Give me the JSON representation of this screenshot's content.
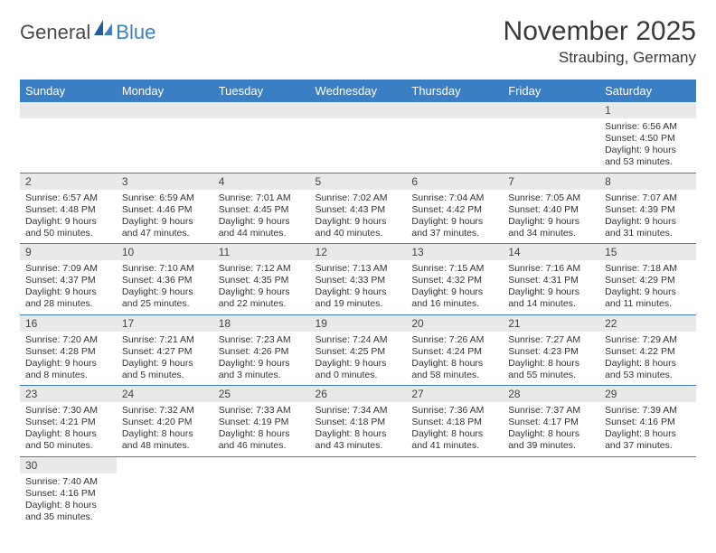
{
  "logo": {
    "text1": "General",
    "text2": "Blue"
  },
  "title": "November 2025",
  "location": "Straubing, Germany",
  "colors": {
    "header_bg": "#3a7fc4",
    "header_text": "#ffffff",
    "daynum_bg": "#e9e9e9",
    "divider": "#3a7fc4",
    "body_text": "#333333",
    "background": "#ffffff"
  },
  "weekdays": [
    "Sunday",
    "Monday",
    "Tuesday",
    "Wednesday",
    "Thursday",
    "Friday",
    "Saturday"
  ],
  "weeks": [
    [
      null,
      null,
      null,
      null,
      null,
      null,
      {
        "n": "1",
        "sr": "Sunrise: 6:56 AM",
        "ss": "Sunset: 4:50 PM",
        "dl": "Daylight: 9 hours and 53 minutes."
      }
    ],
    [
      {
        "n": "2",
        "sr": "Sunrise: 6:57 AM",
        "ss": "Sunset: 4:48 PM",
        "dl": "Daylight: 9 hours and 50 minutes."
      },
      {
        "n": "3",
        "sr": "Sunrise: 6:59 AM",
        "ss": "Sunset: 4:46 PM",
        "dl": "Daylight: 9 hours and 47 minutes."
      },
      {
        "n": "4",
        "sr": "Sunrise: 7:01 AM",
        "ss": "Sunset: 4:45 PM",
        "dl": "Daylight: 9 hours and 44 minutes."
      },
      {
        "n": "5",
        "sr": "Sunrise: 7:02 AM",
        "ss": "Sunset: 4:43 PM",
        "dl": "Daylight: 9 hours and 40 minutes."
      },
      {
        "n": "6",
        "sr": "Sunrise: 7:04 AM",
        "ss": "Sunset: 4:42 PM",
        "dl": "Daylight: 9 hours and 37 minutes."
      },
      {
        "n": "7",
        "sr": "Sunrise: 7:05 AM",
        "ss": "Sunset: 4:40 PM",
        "dl": "Daylight: 9 hours and 34 minutes."
      },
      {
        "n": "8",
        "sr": "Sunrise: 7:07 AM",
        "ss": "Sunset: 4:39 PM",
        "dl": "Daylight: 9 hours and 31 minutes."
      }
    ],
    [
      {
        "n": "9",
        "sr": "Sunrise: 7:09 AM",
        "ss": "Sunset: 4:37 PM",
        "dl": "Daylight: 9 hours and 28 minutes."
      },
      {
        "n": "10",
        "sr": "Sunrise: 7:10 AM",
        "ss": "Sunset: 4:36 PM",
        "dl": "Daylight: 9 hours and 25 minutes."
      },
      {
        "n": "11",
        "sr": "Sunrise: 7:12 AM",
        "ss": "Sunset: 4:35 PM",
        "dl": "Daylight: 9 hours and 22 minutes."
      },
      {
        "n": "12",
        "sr": "Sunrise: 7:13 AM",
        "ss": "Sunset: 4:33 PM",
        "dl": "Daylight: 9 hours and 19 minutes."
      },
      {
        "n": "13",
        "sr": "Sunrise: 7:15 AM",
        "ss": "Sunset: 4:32 PM",
        "dl": "Daylight: 9 hours and 16 minutes."
      },
      {
        "n": "14",
        "sr": "Sunrise: 7:16 AM",
        "ss": "Sunset: 4:31 PM",
        "dl": "Daylight: 9 hours and 14 minutes."
      },
      {
        "n": "15",
        "sr": "Sunrise: 7:18 AM",
        "ss": "Sunset: 4:29 PM",
        "dl": "Daylight: 9 hours and 11 minutes."
      }
    ],
    [
      {
        "n": "16",
        "sr": "Sunrise: 7:20 AM",
        "ss": "Sunset: 4:28 PM",
        "dl": "Daylight: 9 hours and 8 minutes."
      },
      {
        "n": "17",
        "sr": "Sunrise: 7:21 AM",
        "ss": "Sunset: 4:27 PM",
        "dl": "Daylight: 9 hours and 5 minutes."
      },
      {
        "n": "18",
        "sr": "Sunrise: 7:23 AM",
        "ss": "Sunset: 4:26 PM",
        "dl": "Daylight: 9 hours and 3 minutes."
      },
      {
        "n": "19",
        "sr": "Sunrise: 7:24 AM",
        "ss": "Sunset: 4:25 PM",
        "dl": "Daylight: 9 hours and 0 minutes."
      },
      {
        "n": "20",
        "sr": "Sunrise: 7:26 AM",
        "ss": "Sunset: 4:24 PM",
        "dl": "Daylight: 8 hours and 58 minutes."
      },
      {
        "n": "21",
        "sr": "Sunrise: 7:27 AM",
        "ss": "Sunset: 4:23 PM",
        "dl": "Daylight: 8 hours and 55 minutes."
      },
      {
        "n": "22",
        "sr": "Sunrise: 7:29 AM",
        "ss": "Sunset: 4:22 PM",
        "dl": "Daylight: 8 hours and 53 minutes."
      }
    ],
    [
      {
        "n": "23",
        "sr": "Sunrise: 7:30 AM",
        "ss": "Sunset: 4:21 PM",
        "dl": "Daylight: 8 hours and 50 minutes."
      },
      {
        "n": "24",
        "sr": "Sunrise: 7:32 AM",
        "ss": "Sunset: 4:20 PM",
        "dl": "Daylight: 8 hours and 48 minutes."
      },
      {
        "n": "25",
        "sr": "Sunrise: 7:33 AM",
        "ss": "Sunset: 4:19 PM",
        "dl": "Daylight: 8 hours and 46 minutes."
      },
      {
        "n": "26",
        "sr": "Sunrise: 7:34 AM",
        "ss": "Sunset: 4:18 PM",
        "dl": "Daylight: 8 hours and 43 minutes."
      },
      {
        "n": "27",
        "sr": "Sunrise: 7:36 AM",
        "ss": "Sunset: 4:18 PM",
        "dl": "Daylight: 8 hours and 41 minutes."
      },
      {
        "n": "28",
        "sr": "Sunrise: 7:37 AM",
        "ss": "Sunset: 4:17 PM",
        "dl": "Daylight: 8 hours and 39 minutes."
      },
      {
        "n": "29",
        "sr": "Sunrise: 7:39 AM",
        "ss": "Sunset: 4:16 PM",
        "dl": "Daylight: 8 hours and 37 minutes."
      }
    ],
    [
      {
        "n": "30",
        "sr": "Sunrise: 7:40 AM",
        "ss": "Sunset: 4:16 PM",
        "dl": "Daylight: 8 hours and 35 minutes."
      },
      null,
      null,
      null,
      null,
      null,
      null
    ]
  ]
}
